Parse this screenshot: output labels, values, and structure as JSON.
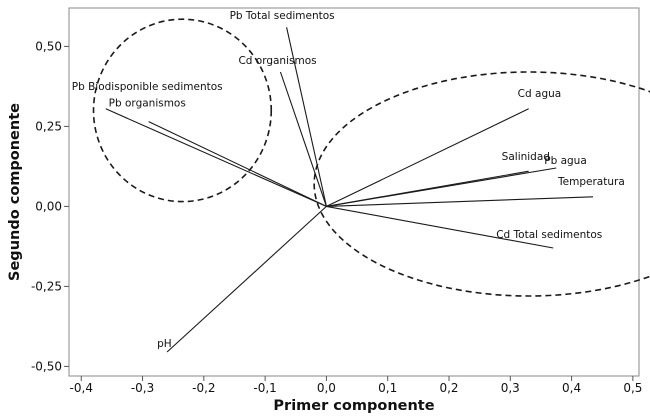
{
  "chart_data": {
    "type": "scatter",
    "subtype": "loading-plot",
    "xlabel": "Primer componente",
    "ylabel": "Segundo componente",
    "xlim": [
      -0.42,
      0.51
    ],
    "ylim": [
      -0.53,
      0.62
    ],
    "x_ticks": [
      -0.4,
      -0.3,
      -0.2,
      -0.1,
      0.0,
      0.1,
      0.2,
      0.3,
      0.4,
      0.5
    ],
    "x_tick_labels": [
      "-0,4",
      "-0,3",
      "-0,2",
      "-0,1",
      "0,0",
      "0,1",
      "0,2",
      "0,3",
      "0,4",
      "0,5"
    ],
    "y_ticks": [
      -0.5,
      -0.25,
      0.0,
      0.25,
      0.5
    ],
    "y_tick_labels": [
      "-0,50",
      "-0,25",
      "0,00",
      "0,25",
      "0,50"
    ],
    "grid": false,
    "vectors": [
      {
        "label": "Pb Total sedimentos",
        "x": -0.065,
        "y": 0.56
      },
      {
        "label": "Cd organismos",
        "x": -0.075,
        "y": 0.42
      },
      {
        "label": "Pb Biodisponible sedimentos",
        "x": -0.36,
        "y": 0.305
      },
      {
        "label": "Pb organismos",
        "x": -0.29,
        "y": 0.265
      },
      {
        "label": "Cd agua",
        "x": 0.33,
        "y": 0.305
      },
      {
        "label": "Pb agua",
        "x": 0.375,
        "y": 0.12
      },
      {
        "label": "Salinidad",
        "x": 0.33,
        "y": 0.11
      },
      {
        "label": "Temperatura",
        "x": 0.435,
        "y": 0.03
      },
      {
        "label": "Cd Total sedimentos",
        "x": 0.37,
        "y": -0.13
      },
      {
        "label": "pH",
        "x": -0.26,
        "y": -0.455
      }
    ],
    "ellipses": [
      {
        "style": "dashed",
        "cx": -0.235,
        "cy": 0.3,
        "rx": 0.145,
        "ry": 0.285
      },
      {
        "style": "dashed",
        "cx": 0.33,
        "cy": 0.07,
        "rx": 0.35,
        "ry": 0.35
      }
    ]
  }
}
